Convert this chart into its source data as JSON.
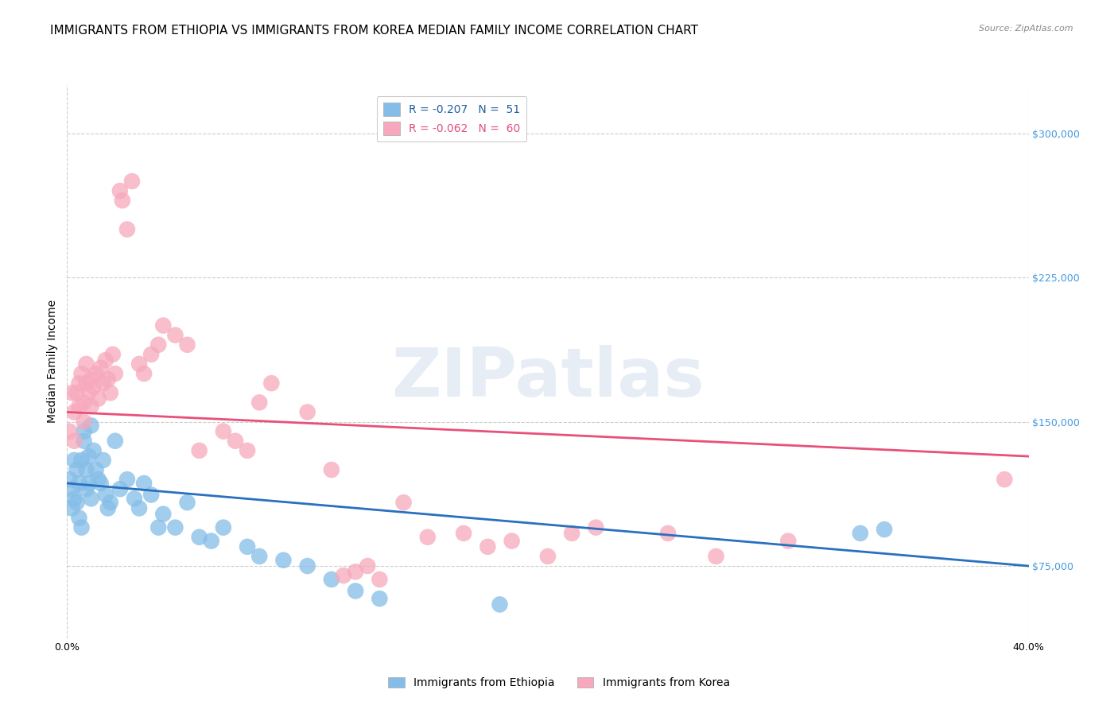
{
  "title": "IMMIGRANTS FROM ETHIOPIA VS IMMIGRANTS FROM KOREA MEDIAN FAMILY INCOME CORRELATION CHART",
  "source": "Source: ZipAtlas.com",
  "ylabel": "Median Family Income",
  "xlim": [
    0.0,
    0.4
  ],
  "ylim": [
    37500,
    325000
  ],
  "yticks": [
    75000,
    150000,
    225000,
    300000
  ],
  "ytick_labels": [
    "$75,000",
    "$150,000",
    "$225,000",
    "$300,000"
  ],
  "xticks": [
    0.0,
    0.05,
    0.1,
    0.15,
    0.2,
    0.25,
    0.3,
    0.35,
    0.4
  ],
  "xtick_labels": [
    "0.0%",
    "",
    "",
    "",
    "",
    "",
    "",
    "",
    "40.0%"
  ],
  "legend_ethiopia": "R = -0.207   N =  51",
  "legend_korea": "R = -0.062   N =  60",
  "legend_label_ethiopia": "Immigrants from Ethiopia",
  "legend_label_korea": "Immigrants from Korea",
  "color_ethiopia": "#85bde8",
  "color_korea": "#f7a8bc",
  "trendline_color_ethiopia": "#2970c0",
  "trendline_color_korea": "#e8507a",
  "background_color": "#ffffff",
  "grid_color": "#cccccc",
  "watermark": "ZIPatlas",
  "ethiopia_trendline_x": [
    0.0,
    0.4
  ],
  "ethiopia_trendline_y": [
    118000,
    75000
  ],
  "korea_trendline_x": [
    0.0,
    0.4
  ],
  "korea_trendline_y": [
    155000,
    132000
  ],
  "ethiopia_x": [
    0.001,
    0.002,
    0.002,
    0.003,
    0.003,
    0.004,
    0.004,
    0.005,
    0.005,
    0.006,
    0.006,
    0.007,
    0.007,
    0.008,
    0.008,
    0.009,
    0.009,
    0.01,
    0.01,
    0.011,
    0.012,
    0.013,
    0.014,
    0.015,
    0.016,
    0.017,
    0.018,
    0.02,
    0.022,
    0.025,
    0.028,
    0.03,
    0.032,
    0.035,
    0.038,
    0.04,
    0.045,
    0.05,
    0.055,
    0.06,
    0.065,
    0.075,
    0.08,
    0.09,
    0.1,
    0.11,
    0.12,
    0.13,
    0.18,
    0.33,
    0.34
  ],
  "ethiopia_y": [
    120000,
    105000,
    115000,
    110000,
    130000,
    125000,
    108000,
    118000,
    100000,
    95000,
    130000,
    140000,
    145000,
    125000,
    115000,
    132000,
    118000,
    110000,
    148000,
    135000,
    125000,
    120000,
    118000,
    130000,
    112000,
    105000,
    108000,
    140000,
    115000,
    120000,
    110000,
    105000,
    118000,
    112000,
    95000,
    102000,
    95000,
    108000,
    90000,
    88000,
    95000,
    85000,
    80000,
    78000,
    75000,
    68000,
    62000,
    58000,
    55000,
    92000,
    94000
  ],
  "korea_x": [
    0.001,
    0.002,
    0.003,
    0.003,
    0.004,
    0.005,
    0.005,
    0.006,
    0.007,
    0.007,
    0.008,
    0.008,
    0.009,
    0.01,
    0.01,
    0.011,
    0.012,
    0.013,
    0.014,
    0.015,
    0.016,
    0.017,
    0.018,
    0.019,
    0.02,
    0.022,
    0.023,
    0.025,
    0.027,
    0.03,
    0.032,
    0.035,
    0.038,
    0.04,
    0.045,
    0.05,
    0.055,
    0.065,
    0.07,
    0.075,
    0.08,
    0.085,
    0.1,
    0.11,
    0.115,
    0.12,
    0.125,
    0.13,
    0.14,
    0.15,
    0.165,
    0.175,
    0.185,
    0.2,
    0.21,
    0.22,
    0.25,
    0.27,
    0.3,
    0.39
  ],
  "korea_y": [
    145000,
    165000,
    155000,
    140000,
    165000,
    158000,
    170000,
    175000,
    160000,
    150000,
    170000,
    180000,
    165000,
    158000,
    172000,
    168000,
    175000,
    162000,
    178000,
    170000,
    182000,
    172000,
    165000,
    185000,
    175000,
    270000,
    265000,
    250000,
    275000,
    180000,
    175000,
    185000,
    190000,
    200000,
    195000,
    190000,
    135000,
    145000,
    140000,
    135000,
    160000,
    170000,
    155000,
    125000,
    70000,
    72000,
    75000,
    68000,
    108000,
    90000,
    92000,
    85000,
    88000,
    80000,
    92000,
    95000,
    92000,
    80000,
    88000,
    120000
  ],
  "title_fontsize": 11,
  "axis_label_fontsize": 10,
  "tick_fontsize": 9,
  "legend_fontsize": 10
}
